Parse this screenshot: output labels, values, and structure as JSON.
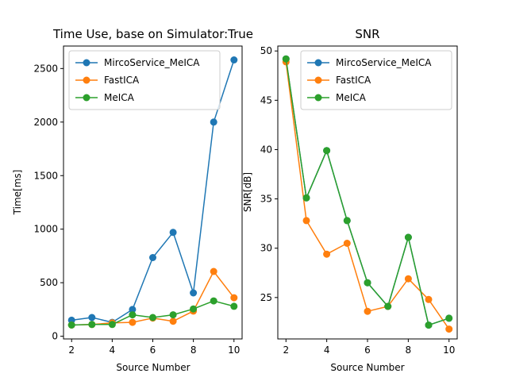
{
  "chart_data": [
    {
      "type": "line",
      "title": "Time Use, base on Simulator:True",
      "xlabel": "Source Number",
      "ylabel": "Time[ms]",
      "x": [
        2,
        3,
        4,
        5,
        6,
        7,
        8,
        9,
        10
      ],
      "xlim": [
        1.6,
        10.4
      ],
      "ylim": [
        -25,
        2710
      ],
      "xticks": [
        2,
        4,
        6,
        8,
        10
      ],
      "yticks": [
        0,
        500,
        1000,
        1500,
        2000,
        2500
      ],
      "grid": false,
      "legend": "top-left",
      "series": [
        {
          "name": "MircoService_MeICA",
          "color": "#1f77b4",
          "values": [
            150,
            175,
            130,
            250,
            735,
            970,
            405,
            2000,
            2580
          ]
        },
        {
          "name": "FastICA",
          "color": "#ff7f0e",
          "values": [
            105,
            110,
            125,
            130,
            170,
            140,
            235,
            605,
            360
          ]
        },
        {
          "name": "MeICA",
          "color": "#2ca02c",
          "values": [
            105,
            110,
            110,
            200,
            175,
            200,
            255,
            330,
            280
          ]
        }
      ]
    },
    {
      "type": "line",
      "title": "SNR",
      "xlabel": "Source Number",
      "ylabel": "SNR[dB]",
      "x": [
        2,
        3,
        4,
        5,
        6,
        7,
        8,
        9,
        10
      ],
      "xlim": [
        1.6,
        10.4
      ],
      "ylim": [
        20.8,
        50.5
      ],
      "xticks": [
        2,
        4,
        6,
        8,
        10
      ],
      "yticks": [
        25,
        30,
        35,
        40,
        45,
        50
      ],
      "grid": false,
      "legend": "top-right",
      "series": [
        {
          "name": "MircoService_MeICA",
          "color": "#1f77b4",
          "values": [
            49.2,
            35.1,
            39.9,
            32.8,
            26.5,
            24.1,
            31.1,
            22.2,
            22.9
          ]
        },
        {
          "name": "FastICA",
          "color": "#ff7f0e",
          "values": [
            48.9,
            32.8,
            29.4,
            30.5,
            23.6,
            24.1,
            26.9,
            24.8,
            21.8
          ]
        },
        {
          "name": "MeICA",
          "color": "#2ca02c",
          "values": [
            49.2,
            35.1,
            39.9,
            32.8,
            26.5,
            24.1,
            31.1,
            22.2,
            22.9
          ]
        }
      ]
    }
  ]
}
